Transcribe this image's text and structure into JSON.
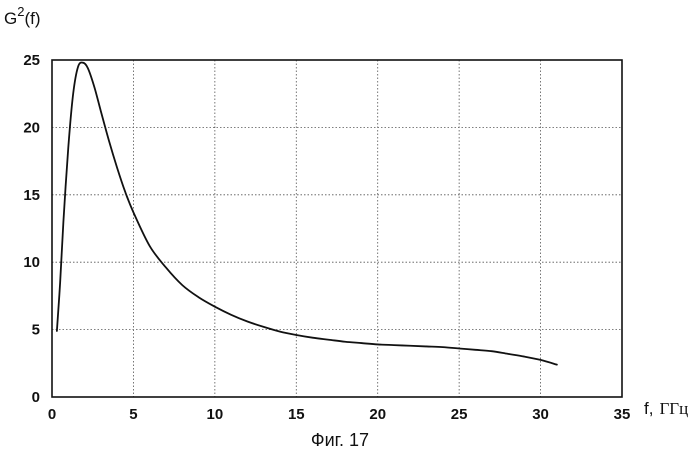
{
  "chart_data": {
    "type": "line",
    "title": "",
    "ylabel": "G",
    "ylabel_superscript": "2",
    "ylabel_suffix": "(f)",
    "xlabel": "f,",
    "xlabel_unit": "ГГц",
    "caption": "Фиг. 17",
    "xlim": [
      0,
      35
    ],
    "ylim": [
      0,
      25
    ],
    "x_ticks": [
      0,
      5,
      10,
      15,
      20,
      25,
      30,
      35
    ],
    "y_ticks": [
      0,
      5,
      10,
      15,
      20,
      25
    ],
    "grid": true,
    "series": [
      {
        "x": [
          0.3,
          0.5,
          0.7,
          1.0,
          1.3,
          1.6,
          1.9,
          2.2,
          2.6,
          3.0,
          3.5,
          4.0,
          4.5,
          5.0,
          6.0,
          7.0,
          8.0,
          9.0,
          10.0,
          11.0,
          12.0,
          13.0,
          14.0,
          15.0,
          16.0,
          17.0,
          18.0,
          19.0,
          20.0,
          21.0,
          22.0,
          23.0,
          24.0,
          25.0,
          26.0,
          27.0,
          28.0,
          29.0,
          30.0,
          31.0
        ],
        "y": [
          4.9,
          8.5,
          13.0,
          18.5,
          22.5,
          24.5,
          24.8,
          24.4,
          23.0,
          21.2,
          19.0,
          17.0,
          15.2,
          13.7,
          11.2,
          9.6,
          8.3,
          7.4,
          6.7,
          6.1,
          5.6,
          5.2,
          4.85,
          4.6,
          4.4,
          4.25,
          4.1,
          4.0,
          3.9,
          3.85,
          3.8,
          3.75,
          3.7,
          3.6,
          3.5,
          3.4,
          3.2,
          3.0,
          2.75,
          2.4
        ]
      }
    ]
  }
}
